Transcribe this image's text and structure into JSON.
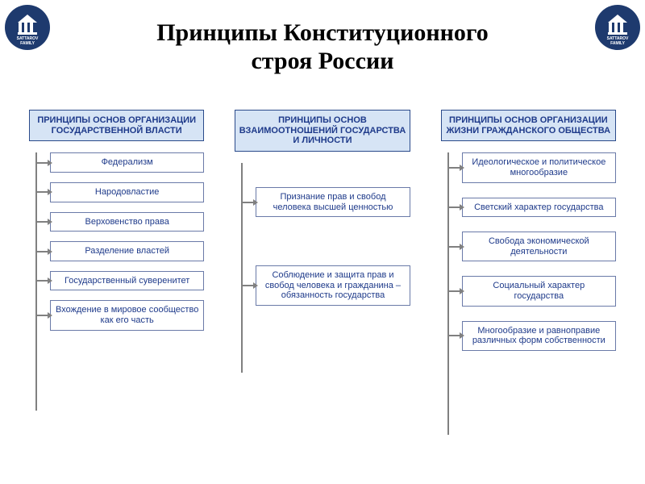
{
  "title_line1": "Принципы Конституционного",
  "title_line2": "строя России",
  "title_fontsize": 30,
  "logo_bg": "#1e3a6e",
  "logo_text": "SATTAROV",
  "logo_text2": "FAMILY",
  "header_bg": "#d6e4f5",
  "header_color": "#1e3a8a",
  "header_fontsize": 11,
  "box_border": "#6a7aa8",
  "box_color": "#1e3a8a",
  "box_fontsize": 11,
  "connector_color": "#808080",
  "columns": [
    {
      "header": "ПРИНЦИПЫ ОСНОВ ОРГАНИЗАЦИИ ГОСУДАРСТВЕННОЙ ВЛАСТИ",
      "item_gap": 12,
      "vline_height": 320,
      "items": [
        "Федерализм",
        "Народовластие",
        "Верховенство права",
        "Разделение властей",
        "Государственный суверенитет",
        "Вхождение в мировое сообщество как его часть"
      ]
    },
    {
      "header": "ПРИНЦИПЫ ОСНОВ ВЗАИМООТНОШЕНИЙ ГОСУДАРСТВА И ЛИЧНОСТИ",
      "item_gap": 60,
      "top_pad": 30,
      "vline_height": 260,
      "items": [
        "Признание прав и свобод человека высшей ценностью",
        "Соблюдение и защита прав и свобод человека и гражданина – обязанность государства"
      ]
    },
    {
      "header": "ПРИНЦИПЫ ОСНОВ ОРГАНИЗАЦИИ ЖИЗНИ ГРАЖДАНСКОГО ОБЩЕСТВА",
      "item_gap": 18,
      "vline_height": 350,
      "items": [
        "Идеологическое и политическое многообразие",
        "Светский характер государства",
        "Свобода экономической деятельности",
        "Социальный характер государства",
        "Многообразие и равноправие различных форм собственности"
      ]
    }
  ]
}
